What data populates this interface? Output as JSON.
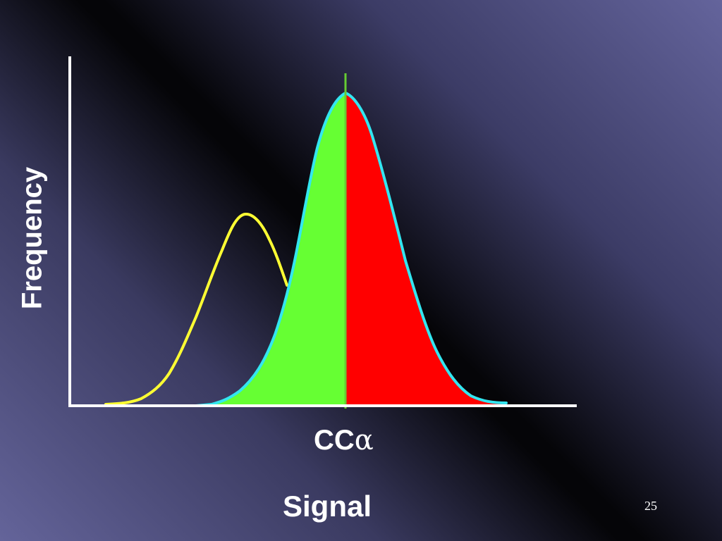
{
  "slide": {
    "y_axis_label": "Frequency",
    "x_axis_label": "Signal",
    "threshold_label_prefix": "CC",
    "threshold_label_symbol": "α",
    "page_number": "25"
  },
  "colors": {
    "background_light": "#64649a",
    "background_dark": "#050508",
    "axes": "#ffffff",
    "null_curve": "#ffff33",
    "alt_curve": "#33e6f0",
    "area_below_threshold": "#66ff33",
    "area_above_threshold": "#ff0000",
    "threshold_line": "#66cc33"
  }
}
